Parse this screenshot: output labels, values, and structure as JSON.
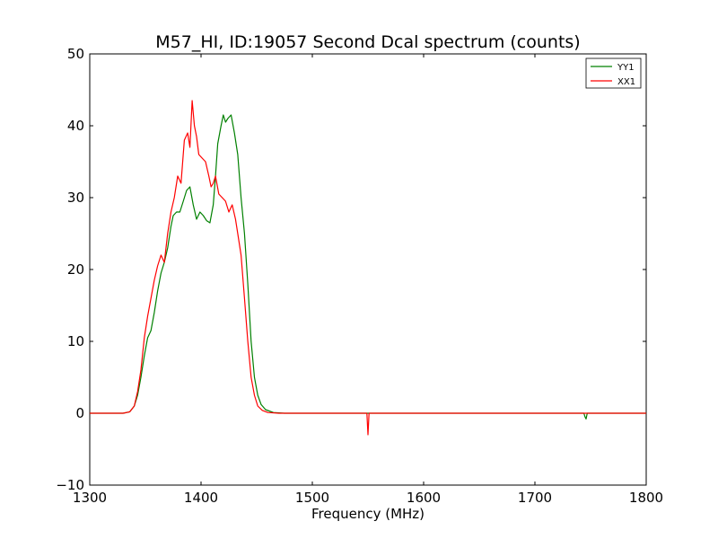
{
  "chart_data": {
    "type": "line",
    "title": "M57_HI, ID:19057 Second Dcal spectrum (counts)",
    "xlabel": "Frequency (MHz)",
    "ylabel": "",
    "xlim": [
      1300,
      1800
    ],
    "ylim": [
      -10,
      50
    ],
    "x_ticks": [
      1300,
      1400,
      1500,
      1600,
      1700,
      1800
    ],
    "y_ticks": [
      -10,
      0,
      10,
      20,
      30,
      40,
      50
    ],
    "x_tick_labels": [
      "1300",
      "1400",
      "1500",
      "1600",
      "1700",
      "1800"
    ],
    "y_tick_labels": [
      "−10",
      "0",
      "10",
      "20",
      "30",
      "40",
      "50"
    ],
    "grid": false,
    "legend_position": "top-right",
    "series": [
      {
        "name": "YY1",
        "color": "#008000",
        "points": [
          [
            1300,
            0
          ],
          [
            1330,
            0
          ],
          [
            1336,
            0.2
          ],
          [
            1340,
            1
          ],
          [
            1343,
            2.5
          ],
          [
            1346,
            5
          ],
          [
            1349,
            8
          ],
          [
            1352,
            10.5
          ],
          [
            1355,
            11.5
          ],
          [
            1358,
            14
          ],
          [
            1361,
            17
          ],
          [
            1364,
            19.5
          ],
          [
            1367,
            21
          ],
          [
            1370,
            23
          ],
          [
            1373,
            26
          ],
          [
            1375,
            27.5
          ],
          [
            1378,
            28
          ],
          [
            1381,
            28
          ],
          [
            1384,
            29.5
          ],
          [
            1387,
            31
          ],
          [
            1390,
            31.5
          ],
          [
            1393,
            29
          ],
          [
            1396,
            27
          ],
          [
            1399,
            28
          ],
          [
            1402,
            27.5
          ],
          [
            1405,
            26.8
          ],
          [
            1408,
            26.5
          ],
          [
            1411,
            29
          ],
          [
            1413,
            33
          ],
          [
            1415,
            37.5
          ],
          [
            1418,
            40
          ],
          [
            1420,
            41.5
          ],
          [
            1422,
            40.5
          ],
          [
            1424,
            41
          ],
          [
            1427,
            41.5
          ],
          [
            1430,
            39
          ],
          [
            1433,
            36
          ],
          [
            1436,
            30
          ],
          [
            1439,
            25
          ],
          [
            1442,
            18
          ],
          [
            1445,
            10
          ],
          [
            1448,
            5
          ],
          [
            1451,
            2.5
          ],
          [
            1454,
            1.2
          ],
          [
            1458,
            0.5
          ],
          [
            1465,
            0.1
          ],
          [
            1475,
            0
          ],
          [
            1740,
            0
          ],
          [
            1744,
            0
          ],
          [
            1745,
            -0.5
          ],
          [
            1746,
            -0.8
          ],
          [
            1747,
            0
          ],
          [
            1800,
            0
          ]
        ]
      },
      {
        "name": "XX1",
        "color": "#ff0000",
        "points": [
          [
            1300,
            0
          ],
          [
            1330,
            0
          ],
          [
            1336,
            0.2
          ],
          [
            1340,
            1
          ],
          [
            1343,
            3
          ],
          [
            1346,
            6
          ],
          [
            1349,
            10.5
          ],
          [
            1352,
            13.5
          ],
          [
            1355,
            16
          ],
          [
            1358,
            18.5
          ],
          [
            1361,
            20.5
          ],
          [
            1364,
            22
          ],
          [
            1367,
            21
          ],
          [
            1370,
            25
          ],
          [
            1373,
            28
          ],
          [
            1376,
            30
          ],
          [
            1379,
            33
          ],
          [
            1382,
            32
          ],
          [
            1385,
            38
          ],
          [
            1388,
            39
          ],
          [
            1390,
            37
          ],
          [
            1392,
            43.5
          ],
          [
            1394,
            40
          ],
          [
            1396,
            38.5
          ],
          [
            1398,
            36
          ],
          [
            1401,
            35.5
          ],
          [
            1404,
            35
          ],
          [
            1407,
            33
          ],
          [
            1409,
            31.5
          ],
          [
            1411,
            32
          ],
          [
            1413,
            33
          ],
          [
            1416,
            30.5
          ],
          [
            1419,
            30
          ],
          [
            1422,
            29.5
          ],
          [
            1425,
            28
          ],
          [
            1428,
            29
          ],
          [
            1431,
            27
          ],
          [
            1433,
            25
          ],
          [
            1436,
            22
          ],
          [
            1439,
            16
          ],
          [
            1442,
            10
          ],
          [
            1445,
            5
          ],
          [
            1448,
            2.5
          ],
          [
            1451,
            1
          ],
          [
            1455,
            0.4
          ],
          [
            1460,
            0.1
          ],
          [
            1470,
            0
          ],
          [
            1549,
            0
          ],
          [
            1550,
            -3
          ],
          [
            1551,
            0
          ],
          [
            1800,
            0
          ]
        ]
      }
    ]
  }
}
